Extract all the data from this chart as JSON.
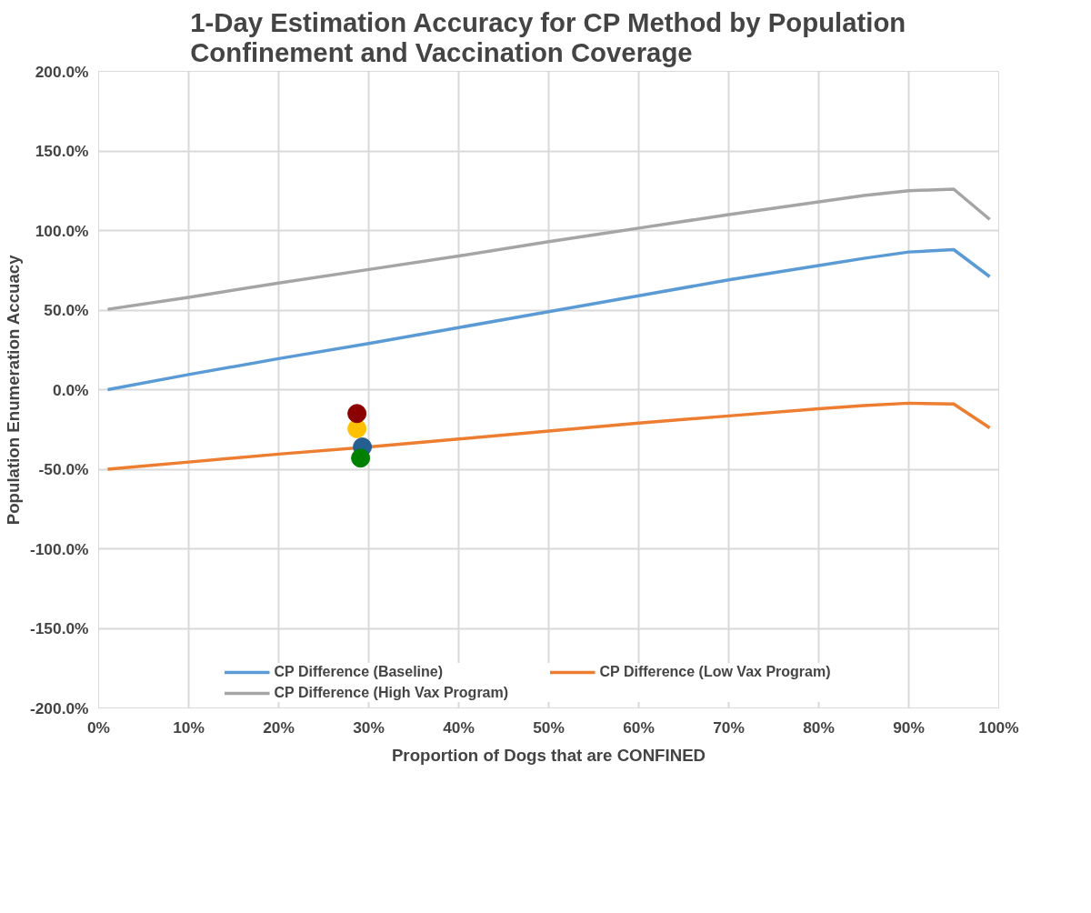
{
  "chart_data": {
    "type": "line",
    "title": "1-Day Estimation Accuracy for CP Method by Population\nConfinement and Vaccination Coverage",
    "xlabel": "Proportion of Dogs that are CONFINED",
    "ylabel": "Population Enumeration Accuacy",
    "x": [
      1,
      10,
      20,
      30,
      40,
      50,
      60,
      70,
      80,
      85,
      90,
      95,
      99
    ],
    "series": [
      {
        "name": "CP Difference (Baseline)",
        "color": "#5b9bd5",
        "values": [
          0,
          9.5,
          19.5,
          29,
          39,
          49,
          59,
          69,
          78,
          82.5,
          86.5,
          88,
          71
        ]
      },
      {
        "name": "CP Difference (Low Vax Program)",
        "color": "#ed7d31",
        "values": [
          -50,
          -45.5,
          -40.5,
          -36,
          -31,
          -26,
          -21,
          -16.5,
          -12,
          -10,
          -8.5,
          -9,
          -24
        ]
      },
      {
        "name": "CP Difference (High Vax Program)",
        "color": "#a5a5a5",
        "values": [
          50.5,
          58,
          67,
          75.5,
          84,
          93,
          101.5,
          110,
          118,
          122,
          125,
          126,
          107
        ]
      },
      {
        "type": "scatter",
        "marker": "circle",
        "color": "#ffc000",
        "x": [
          28.7
        ],
        "values": [
          -24.5
        ]
      },
      {
        "type": "scatter",
        "marker": "circle",
        "color": "#255e91",
        "x": [
          29.3
        ],
        "values": [
          -36
        ]
      },
      {
        "type": "scatter",
        "marker": "circle",
        "color": "#008000",
        "x": [
          29.1
        ],
        "values": [
          -43
        ]
      },
      {
        "type": "scatter",
        "marker": "circle",
        "color": "#8b0000",
        "x": [
          28.7
        ],
        "values": [
          -15
        ]
      }
    ],
    "xlim": [
      0,
      100
    ],
    "ylim": [
      -200,
      200
    ],
    "xticks": [
      {
        "value": 0,
        "label": "0%"
      },
      {
        "value": 10,
        "label": "10%"
      },
      {
        "value": 20,
        "label": "20%"
      },
      {
        "value": 30,
        "label": "30%"
      },
      {
        "value": 40,
        "label": "40%"
      },
      {
        "value": 50,
        "label": "50%"
      },
      {
        "value": 60,
        "label": "60%"
      },
      {
        "value": 70,
        "label": "70%"
      },
      {
        "value": 80,
        "label": "80%"
      },
      {
        "value": 90,
        "label": "90%"
      },
      {
        "value": 100,
        "label": "100%"
      }
    ],
    "yticks": [
      {
        "value": 200,
        "label": "200.0%"
      },
      {
        "value": 150,
        "label": "150.0%"
      },
      {
        "value": 100,
        "label": "100.0%"
      },
      {
        "value": 50,
        "label": "50.0%"
      },
      {
        "value": 0,
        "label": "0.0%"
      },
      {
        "value": -50,
        "label": "-50.0%"
      },
      {
        "value": -100,
        "label": "-100.0%"
      },
      {
        "value": -150,
        "label": "-150.0%"
      },
      {
        "value": -200,
        "label": "-200.0%"
      }
    ],
    "grid": true,
    "legend": "bottom",
    "marker": "none",
    "line_style": "solid"
  }
}
